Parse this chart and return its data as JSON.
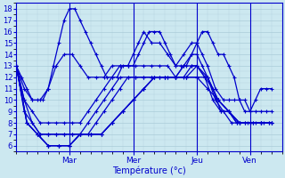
{
  "xlabel": "Température (°c)",
  "xlim": [
    0,
    100
  ],
  "ylim": [
    5.5,
    18.5
  ],
  "yticks": [
    6,
    7,
    8,
    9,
    10,
    11,
    12,
    13,
    14,
    15,
    16,
    17,
    18
  ],
  "xtick_positions": [
    20,
    44,
    68,
    88
  ],
  "xtick_labels": [
    "Mar",
    "Mer",
    "Jeu",
    "Ven"
  ],
  "bg_color": "#cce8f0",
  "grid_color": "#aaccd8",
  "line_color": "#0000cc",
  "marker": "+",
  "markersize": 3,
  "linewidth": 0.9,
  "series": [
    {
      "x": [
        0,
        2,
        4,
        6,
        8,
        10,
        12,
        14,
        16,
        18,
        20,
        22,
        24,
        26,
        28,
        30,
        32,
        34,
        36,
        38,
        40,
        42,
        44,
        46,
        48,
        50,
        52,
        54,
        56,
        58,
        60,
        62,
        64,
        66,
        68,
        70,
        72,
        74,
        76,
        78,
        80,
        82,
        84,
        86,
        88,
        90,
        92,
        94,
        96
      ],
      "y": [
        13,
        12,
        11,
        10,
        10,
        10,
        11,
        13,
        15,
        17,
        18,
        18,
        17,
        16,
        15,
        14,
        13,
        12,
        12,
        12,
        13,
        13,
        13,
        14,
        15,
        16,
        16,
        16,
        15,
        14,
        13,
        13,
        13,
        14,
        15,
        16,
        16,
        15,
        14,
        14,
        13,
        12,
        10,
        9,
        9,
        10,
        11,
        11,
        11
      ]
    },
    {
      "x": [
        0,
        3,
        6,
        9,
        12,
        15,
        18,
        21,
        24,
        27,
        30,
        33,
        36,
        39,
        42,
        44,
        46,
        48,
        51,
        54,
        57,
        60,
        63,
        66,
        68,
        70,
        72,
        75,
        78,
        80,
        82,
        84,
        86,
        88,
        90,
        92,
        94,
        96
      ],
      "y": [
        13,
        11,
        10,
        10,
        11,
        13,
        14,
        14,
        13,
        12,
        12,
        12,
        13,
        13,
        13,
        14,
        15,
        16,
        15,
        15,
        14,
        13,
        14,
        15,
        15,
        14,
        13,
        11,
        10,
        10,
        10,
        10,
        10,
        9,
        9,
        9,
        9,
        9
      ]
    },
    {
      "x": [
        0,
        3,
        6,
        9,
        12,
        15,
        18,
        21,
        24,
        27,
        30,
        33,
        36,
        39,
        42,
        45,
        48,
        51,
        54,
        57,
        60,
        63,
        66,
        68,
        70,
        72,
        75,
        78,
        81,
        84,
        87,
        90,
        93,
        96
      ],
      "y": [
        13,
        10,
        9,
        8,
        8,
        8,
        8,
        8,
        8,
        9,
        10,
        11,
        12,
        13,
        13,
        13,
        13,
        13,
        13,
        13,
        12,
        13,
        14,
        14,
        13,
        12,
        10,
        9,
        8,
        8,
        8,
        8,
        8,
        8
      ]
    },
    {
      "x": [
        0,
        3,
        6,
        9,
        12,
        15,
        18,
        21,
        24,
        27,
        30,
        33,
        36,
        39,
        42,
        45,
        48,
        51,
        54,
        57,
        60,
        63,
        66,
        68,
        71,
        74,
        77,
        80,
        83,
        86,
        89,
        92,
        95
      ],
      "y": [
        13,
        10,
        8,
        7,
        7,
        7,
        7,
        7,
        7,
        8,
        9,
        10,
        11,
        12,
        12,
        12,
        12,
        12,
        12,
        12,
        12,
        13,
        13,
        13,
        12,
        11,
        9,
        9,
        8,
        8,
        8,
        8,
        8
      ]
    },
    {
      "x": [
        0,
        3,
        6,
        9,
        12,
        15,
        18,
        21,
        24,
        27,
        30,
        33,
        36,
        39,
        42,
        45,
        48,
        51,
        54,
        57,
        60,
        63,
        66,
        68,
        71,
        74,
        77,
        80,
        83,
        86,
        89,
        92,
        95
      ],
      "y": [
        13,
        9,
        8,
        7,
        7,
        7,
        7,
        7,
        7,
        7,
        8,
        9,
        10,
        11,
        12,
        12,
        12,
        12,
        12,
        12,
        12,
        12,
        13,
        13,
        12,
        10,
        9,
        9,
        8,
        8,
        8,
        8,
        8
      ]
    },
    {
      "x": [
        0,
        4,
        8,
        12,
        16,
        20,
        24,
        28,
        32,
        36,
        40,
        44,
        48,
        52,
        56,
        60,
        64,
        68,
        72,
        76,
        80,
        84,
        88,
        92,
        96
      ],
      "y": [
        13,
        8,
        7,
        6,
        6,
        6,
        7,
        7,
        7,
        8,
        9,
        10,
        11,
        12,
        12,
        12,
        12,
        13,
        12,
        10,
        9,
        8,
        8,
        8,
        8
      ]
    },
    {
      "x": [
        0,
        4,
        8,
        12,
        16,
        20,
        24,
        28,
        32,
        36,
        40,
        44,
        48,
        52,
        56,
        60,
        64,
        68,
        72,
        76,
        80,
        84,
        88,
        92,
        96
      ],
      "y": [
        13,
        8,
        7,
        6,
        6,
        6,
        7,
        7,
        7,
        8,
        9,
        10,
        11,
        12,
        12,
        12,
        12,
        12,
        12,
        10,
        9,
        8,
        8,
        8,
        8
      ]
    },
    {
      "x": [
        0,
        4,
        8,
        12,
        16,
        20,
        24,
        28,
        32,
        36,
        40,
        44,
        48,
        52,
        56,
        60,
        64,
        68,
        72,
        76,
        80,
        84,
        88,
        92,
        96
      ],
      "y": [
        13,
        8,
        7,
        6,
        6,
        6,
        7,
        7,
        7,
        8,
        9,
        10,
        11,
        12,
        12,
        12,
        12,
        12,
        11,
        10,
        9,
        8,
        8,
        8,
        8
      ]
    }
  ]
}
